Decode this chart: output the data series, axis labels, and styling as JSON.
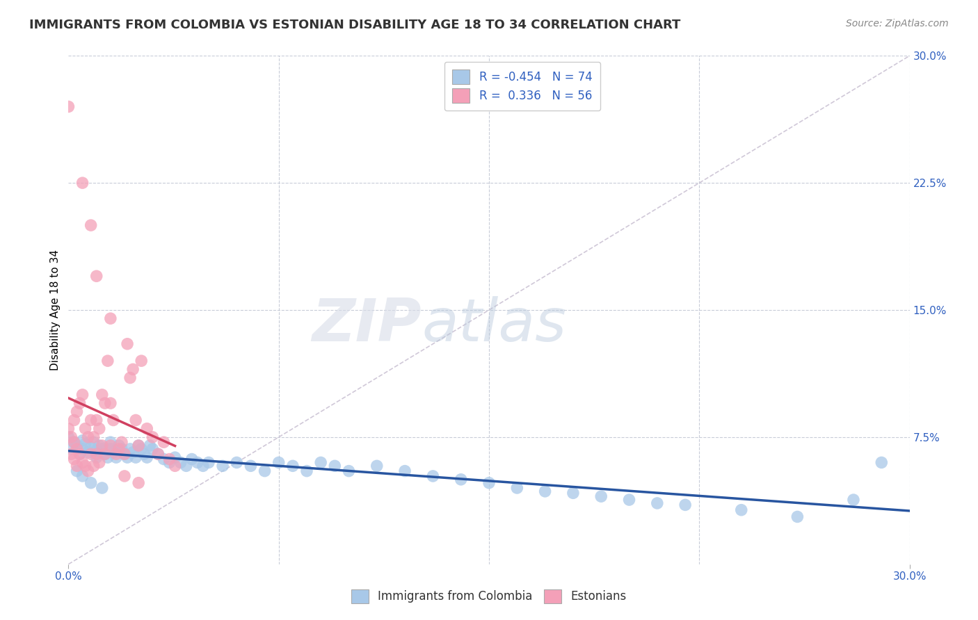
{
  "title": "IMMIGRANTS FROM COLOMBIA VS ESTONIAN DISABILITY AGE 18 TO 34 CORRELATION CHART",
  "source": "Source: ZipAtlas.com",
  "ylabel": "Disability Age 18 to 34",
  "xlim": [
    0.0,
    0.3
  ],
  "ylim": [
    0.0,
    0.3
  ],
  "blue_R": -0.454,
  "blue_N": 74,
  "pink_R": 0.336,
  "pink_N": 56,
  "blue_color": "#a8c8e8",
  "pink_color": "#f4a0b8",
  "blue_line_color": "#2855a0",
  "pink_line_color": "#d04060",
  "diag_line_color": "#d0c8d8",
  "background_color": "#ffffff",
  "grid_color": "#c8ccd8",
  "blue_scatter_x": [
    0.0,
    0.001,
    0.002,
    0.003,
    0.004,
    0.005,
    0.005,
    0.006,
    0.007,
    0.008,
    0.009,
    0.01,
    0.01,
    0.011,
    0.012,
    0.013,
    0.014,
    0.015,
    0.015,
    0.016,
    0.017,
    0.018,
    0.019,
    0.02,
    0.021,
    0.022,
    0.023,
    0.024,
    0.025,
    0.026,
    0.027,
    0.028,
    0.029,
    0.03,
    0.032,
    0.034,
    0.036,
    0.038,
    0.04,
    0.042,
    0.044,
    0.046,
    0.048,
    0.05,
    0.055,
    0.06,
    0.065,
    0.07,
    0.075,
    0.08,
    0.085,
    0.09,
    0.095,
    0.1,
    0.11,
    0.12,
    0.13,
    0.14,
    0.15,
    0.16,
    0.17,
    0.18,
    0.19,
    0.2,
    0.21,
    0.22,
    0.24,
    0.26,
    0.28,
    0.29,
    0.003,
    0.005,
    0.008,
    0.012
  ],
  "blue_scatter_y": [
    0.075,
    0.068,
    0.072,
    0.07,
    0.065,
    0.073,
    0.068,
    0.071,
    0.066,
    0.069,
    0.072,
    0.067,
    0.063,
    0.07,
    0.068,
    0.065,
    0.063,
    0.072,
    0.068,
    0.066,
    0.063,
    0.07,
    0.068,
    0.065,
    0.063,
    0.068,
    0.066,
    0.063,
    0.07,
    0.068,
    0.065,
    0.063,
    0.07,
    0.068,
    0.065,
    0.062,
    0.06,
    0.063,
    0.06,
    0.058,
    0.062,
    0.06,
    0.058,
    0.06,
    0.058,
    0.06,
    0.058,
    0.055,
    0.06,
    0.058,
    0.055,
    0.06,
    0.058,
    0.055,
    0.058,
    0.055,
    0.052,
    0.05,
    0.048,
    0.045,
    0.043,
    0.042,
    0.04,
    0.038,
    0.036,
    0.035,
    0.032,
    0.028,
    0.038,
    0.06,
    0.055,
    0.052,
    0.048,
    0.045
  ],
  "pink_scatter_x": [
    0.0,
    0.0,
    0.001,
    0.001,
    0.002,
    0.002,
    0.002,
    0.003,
    0.003,
    0.003,
    0.004,
    0.004,
    0.005,
    0.005,
    0.006,
    0.006,
    0.007,
    0.007,
    0.008,
    0.008,
    0.009,
    0.009,
    0.01,
    0.01,
    0.011,
    0.011,
    0.012,
    0.012,
    0.013,
    0.013,
    0.014,
    0.015,
    0.015,
    0.016,
    0.017,
    0.018,
    0.019,
    0.02,
    0.021,
    0.022,
    0.023,
    0.024,
    0.025,
    0.026,
    0.028,
    0.03,
    0.032,
    0.034,
    0.036,
    0.038,
    0.005,
    0.008,
    0.01,
    0.015,
    0.02,
    0.025
  ],
  "pink_scatter_y": [
    0.27,
    0.08,
    0.075,
    0.065,
    0.085,
    0.072,
    0.062,
    0.09,
    0.068,
    0.058,
    0.095,
    0.065,
    0.1,
    0.06,
    0.08,
    0.058,
    0.075,
    0.055,
    0.085,
    0.065,
    0.075,
    0.058,
    0.085,
    0.065,
    0.08,
    0.06,
    0.1,
    0.07,
    0.095,
    0.065,
    0.12,
    0.095,
    0.07,
    0.085,
    0.065,
    0.068,
    0.072,
    0.065,
    0.13,
    0.11,
    0.115,
    0.085,
    0.07,
    0.12,
    0.08,
    0.075,
    0.065,
    0.072,
    0.062,
    0.058,
    0.225,
    0.2,
    0.17,
    0.145,
    0.052,
    0.048
  ]
}
